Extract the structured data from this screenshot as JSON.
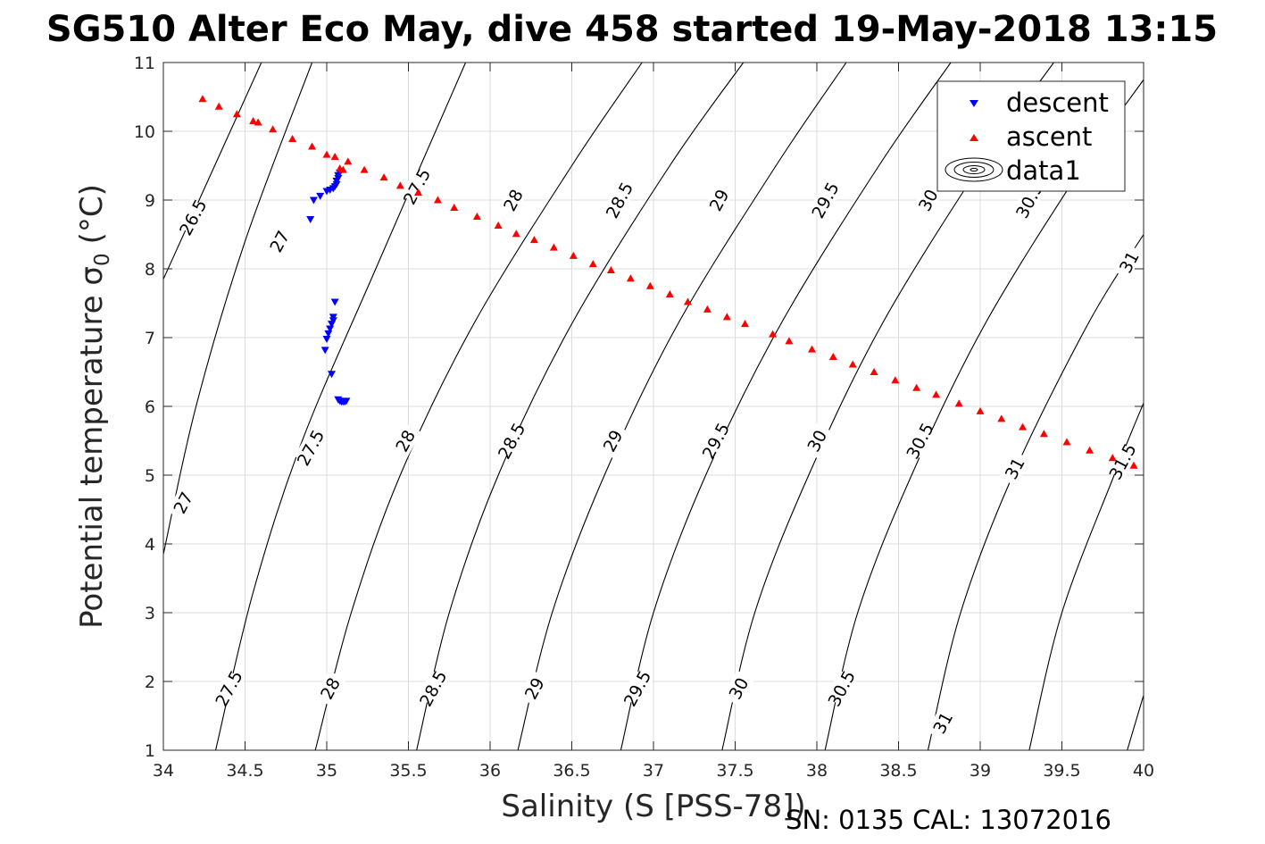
{
  "footer": {
    "serial": "SN: 0135  CAL: 13072016"
  },
  "chart_data": {
    "type": "scatter",
    "title": "SG510 Alter Eco May, dive 458 started 19-May-2018 13:15",
    "xlabel": "Salinity (S [PSS-78])",
    "ylabel_main": "Potential temperature σ",
    "ylabel_sub": "0",
    "ylabel_unit": "(°C)",
    "xlim": [
      34,
      40
    ],
    "ylim": [
      1,
      11
    ],
    "xticks": [
      34,
      34.5,
      35,
      35.5,
      36,
      36.5,
      37,
      37.5,
      38,
      38.5,
      39,
      39.5,
      40
    ],
    "xtick_labels": [
      "34",
      "34.5",
      "35",
      "35.5",
      "36",
      "36.5",
      "37",
      "37.5",
      "38",
      "38.5",
      "39",
      "39.5",
      "40"
    ],
    "yticks": [
      1,
      2,
      3,
      4,
      5,
      6,
      7,
      8,
      9,
      10,
      11
    ],
    "ytick_labels": [
      "1",
      "2",
      "3",
      "4",
      "5",
      "6",
      "7",
      "8",
      "9",
      "10",
      "11"
    ],
    "grid": true,
    "legend_position": "top-right",
    "legend": [
      {
        "label": "descent",
        "marker": "triangle-down",
        "color": "#0000ff"
      },
      {
        "label": "ascent",
        "marker": "triangle-up",
        "color": "#ff0000"
      },
      {
        "label": "data1",
        "marker": "contour",
        "color": "#000000"
      }
    ],
    "series": [
      {
        "name": "descent",
        "marker": "triangle-down",
        "color": "#0000ff",
        "points": [
          [
            34.9,
            8.72
          ],
          [
            34.92,
            9.0
          ],
          [
            34.96,
            9.06
          ],
          [
            35.0,
            9.13
          ],
          [
            35.02,
            9.15
          ],
          [
            35.04,
            9.17
          ],
          [
            35.05,
            9.2
          ],
          [
            35.06,
            9.23
          ],
          [
            35.06,
            9.28
          ],
          [
            35.07,
            9.32
          ],
          [
            35.07,
            9.36
          ],
          [
            35.08,
            9.4
          ],
          [
            35.05,
            7.52
          ],
          [
            35.04,
            7.3
          ],
          [
            35.04,
            7.25
          ],
          [
            35.03,
            7.2
          ],
          [
            35.02,
            7.13
          ],
          [
            35.01,
            7.06
          ],
          [
            35.0,
            6.98
          ],
          [
            34.99,
            6.82
          ],
          [
            35.03,
            6.47
          ],
          [
            35.07,
            6.1
          ],
          [
            35.08,
            6.08
          ],
          [
            35.09,
            6.07
          ],
          [
            35.1,
            6.07
          ],
          [
            35.11,
            6.07
          ],
          [
            35.12,
            6.08
          ]
        ]
      },
      {
        "name": "ascent",
        "marker": "triangle-up",
        "color": "#ff0000",
        "points": [
          [
            34.24,
            10.47
          ],
          [
            34.34,
            10.36
          ],
          [
            34.45,
            10.25
          ],
          [
            34.55,
            10.15
          ],
          [
            34.58,
            10.13
          ],
          [
            34.67,
            10.03
          ],
          [
            34.79,
            9.89
          ],
          [
            34.91,
            9.78
          ],
          [
            35.0,
            9.66
          ],
          [
            35.05,
            9.63
          ],
          [
            35.08,
            9.46
          ],
          [
            35.1,
            9.44
          ],
          [
            35.13,
            9.56
          ],
          [
            35.23,
            9.44
          ],
          [
            35.35,
            9.33
          ],
          [
            35.45,
            9.21
          ],
          [
            35.56,
            9.11
          ],
          [
            35.68,
            9.0
          ],
          [
            35.78,
            8.89
          ],
          [
            35.92,
            8.76
          ],
          [
            36.05,
            8.63
          ],
          [
            36.16,
            8.51
          ],
          [
            36.27,
            8.42
          ],
          [
            36.39,
            8.31
          ],
          [
            36.51,
            8.19
          ],
          [
            36.63,
            8.07
          ],
          [
            36.74,
            7.98
          ],
          [
            36.86,
            7.86
          ],
          [
            36.98,
            7.75
          ],
          [
            37.1,
            7.63
          ],
          [
            37.21,
            7.52
          ],
          [
            37.33,
            7.41
          ],
          [
            37.45,
            7.3
          ],
          [
            37.56,
            7.2
          ],
          [
            37.73,
            7.05
          ],
          [
            37.83,
            6.95
          ],
          [
            37.97,
            6.83
          ],
          [
            38.1,
            6.72
          ],
          [
            38.22,
            6.61
          ],
          [
            38.35,
            6.5
          ],
          [
            38.48,
            6.38
          ],
          [
            38.61,
            6.27
          ],
          [
            38.73,
            6.17
          ],
          [
            38.87,
            6.04
          ],
          [
            39.0,
            5.93
          ],
          [
            39.13,
            5.82
          ],
          [
            39.26,
            5.7
          ],
          [
            39.39,
            5.6
          ],
          [
            39.53,
            5.48
          ],
          [
            39.67,
            5.36
          ],
          [
            39.81,
            5.25
          ],
          [
            39.94,
            5.14
          ]
        ]
      }
    ],
    "contours": [
      {
        "level": 26.5,
        "points": [
          [
            34.0,
            7.85
          ],
          [
            34.6,
            11.0
          ]
        ],
        "labels": [
          [
            34.18,
            8.75,
            "26.5"
          ]
        ]
      },
      {
        "level": 27,
        "points": [
          [
            34.0,
            3.85
          ],
          [
            34.2,
            6.0
          ],
          [
            34.5,
            8.4
          ],
          [
            34.91,
            11.0
          ]
        ],
        "labels": [
          [
            34.12,
            4.6,
            "27"
          ],
          [
            34.71,
            8.4,
            "27"
          ]
        ]
      },
      {
        "level": 27.5,
        "points": [
          [
            34.32,
            1.0
          ],
          [
            34.55,
            3.3
          ],
          [
            34.85,
            5.5
          ],
          [
            35.3,
            8.0
          ],
          [
            35.85,
            11.0
          ]
        ],
        "labels": [
          [
            34.4,
            1.9,
            "27.5"
          ],
          [
            34.9,
            5.4,
            "27.5"
          ],
          [
            35.55,
            9.2,
            "27.5"
          ]
        ]
      },
      {
        "level": 28,
        "points": [
          [
            34.93,
            1.0
          ],
          [
            35.15,
            3.0
          ],
          [
            35.45,
            5.0
          ],
          [
            35.9,
            7.2
          ],
          [
            36.5,
            9.5
          ],
          [
            36.93,
            11.0
          ]
        ],
        "labels": [
          [
            35.02,
            1.9,
            "28"
          ],
          [
            35.48,
            5.5,
            "28"
          ],
          [
            36.14,
            9.0,
            "28"
          ]
        ]
      },
      {
        "level": 28.5,
        "points": [
          [
            35.55,
            1.0
          ],
          [
            35.75,
            3.0
          ],
          [
            36.05,
            5.0
          ],
          [
            36.5,
            7.2
          ],
          [
            37.1,
            9.5
          ],
          [
            37.55,
            11.0
          ]
        ],
        "labels": [
          [
            35.65,
            1.9,
            "28.5"
          ],
          [
            36.13,
            5.5,
            "28.5"
          ],
          [
            36.79,
            9.0,
            "28.5"
          ]
        ]
      },
      {
        "level": 29,
        "points": [
          [
            36.17,
            1.0
          ],
          [
            36.38,
            3.0
          ],
          [
            36.7,
            5.0
          ],
          [
            37.15,
            7.2
          ],
          [
            37.75,
            9.5
          ],
          [
            38.18,
            11.0
          ]
        ],
        "labels": [
          [
            36.27,
            1.9,
            "29"
          ],
          [
            36.75,
            5.5,
            "29"
          ],
          [
            37.4,
            9.0,
            "29"
          ]
        ]
      },
      {
        "level": 29.5,
        "points": [
          [
            36.8,
            1.0
          ],
          [
            37.0,
            3.0
          ],
          [
            37.32,
            5.0
          ],
          [
            37.78,
            7.2
          ],
          [
            38.38,
            9.5
          ],
          [
            38.82,
            11.0
          ]
        ],
        "labels": [
          [
            36.9,
            1.9,
            "29.5"
          ],
          [
            37.38,
            5.5,
            "29.5"
          ],
          [
            38.05,
            9.0,
            "29.5"
          ]
        ]
      },
      {
        "level": 30,
        "points": [
          [
            37.42,
            1.0
          ],
          [
            37.62,
            3.0
          ],
          [
            37.95,
            5.0
          ],
          [
            38.4,
            7.2
          ],
          [
            39.0,
            9.5
          ],
          [
            39.45,
            11.0
          ]
        ],
        "labels": [
          [
            37.52,
            1.9,
            "30"
          ],
          [
            38.0,
            5.5,
            "30"
          ],
          [
            38.68,
            9.0,
            "30"
          ]
        ]
      },
      {
        "level": 30.5,
        "points": [
          [
            38.05,
            1.0
          ],
          [
            38.25,
            3.0
          ],
          [
            38.58,
            5.0
          ],
          [
            39.03,
            7.2
          ],
          [
            39.63,
            9.5
          ],
          [
            40.0,
            10.75
          ]
        ],
        "labels": [
          [
            38.15,
            1.9,
            "30.5"
          ],
          [
            38.63,
            5.5,
            "30.5"
          ],
          [
            39.3,
            9.0,
            "30.5"
          ]
        ]
      },
      {
        "level": 31,
        "points": [
          [
            38.68,
            1.0
          ],
          [
            38.88,
            3.0
          ],
          [
            39.2,
            5.0
          ],
          [
            39.66,
            7.2
          ],
          [
            40.0,
            8.5
          ]
        ],
        "labels": [
          [
            38.77,
            1.4,
            "31"
          ],
          [
            39.21,
            5.1,
            "31"
          ],
          [
            39.91,
            8.1,
            "31"
          ]
        ]
      },
      {
        "level": 31.5,
        "points": [
          [
            39.3,
            1.0
          ],
          [
            39.5,
            3.0
          ],
          [
            39.82,
            5.0
          ],
          [
            40.0,
            6.05
          ]
        ],
        "labels": [
          [
            39.87,
            5.2,
            "31.5"
          ]
        ]
      },
      {
        "level": 32,
        "points": [
          [
            39.9,
            1.0
          ],
          [
            40.0,
            1.8
          ]
        ],
        "labels": []
      }
    ]
  }
}
